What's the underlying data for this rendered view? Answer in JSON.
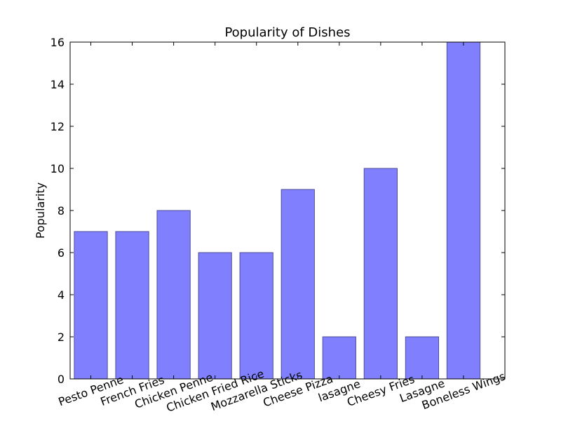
{
  "chart_data": {
    "type": "bar",
    "title": "Popularity of Dishes",
    "xlabel": "",
    "ylabel": "Popularity",
    "categories": [
      "Pesto Penne",
      "French Fries",
      "Chicken Penne",
      "Chicken Fried Rice",
      "Mozzarella Sticks",
      "Cheese Pizza",
      "lasagne",
      "Cheesy Fries",
      "Lasagne",
      "Boneless Wings"
    ],
    "values": [
      7,
      7,
      8,
      6,
      6,
      9,
      2,
      10,
      2,
      16
    ],
    "ylim": [
      0,
      16
    ],
    "yticks": [
      0,
      2,
      4,
      6,
      8,
      10,
      12,
      14,
      16
    ],
    "bar_color": "#8080ff",
    "bar_edge_color": "#4d4d99",
    "grid": false,
    "legend": "none"
  }
}
